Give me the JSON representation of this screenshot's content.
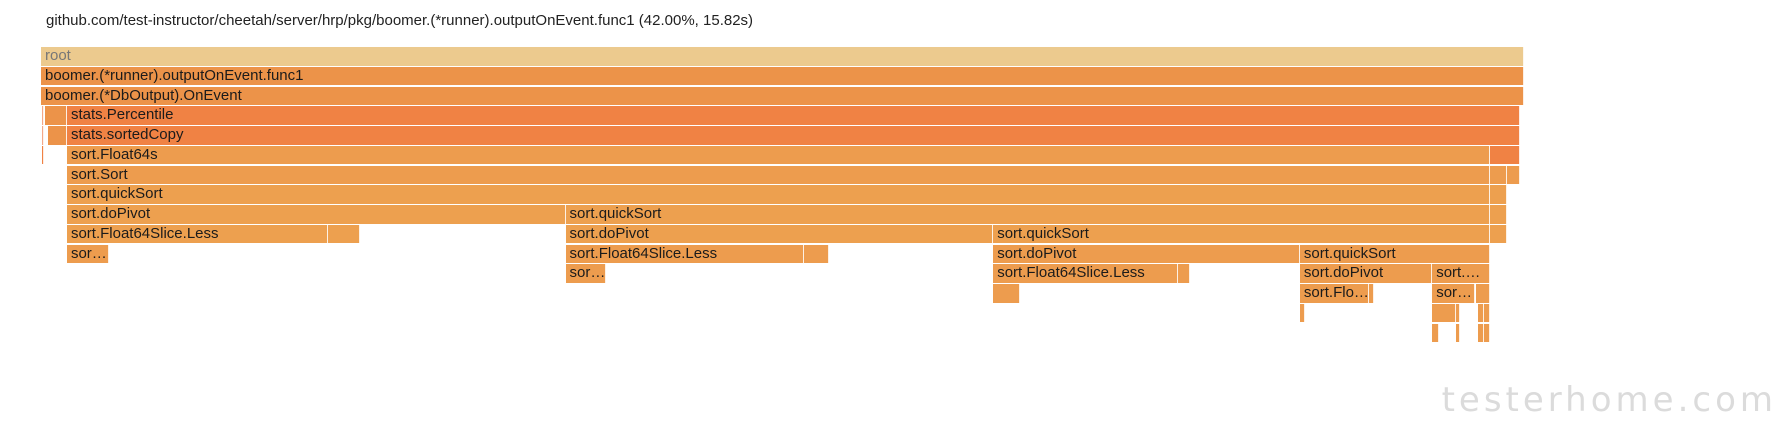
{
  "header": {
    "title": "github.com/test-instructor/cheetah/server/hrp/pkg/boomer.(*runner).outputOnEvent.func1 (42.00%, 15.82s)"
  },
  "colors": {
    "root": "#ecca8e",
    "dark": "#ec9349",
    "red": "#f08244",
    "orange": "#ed9c4e",
    "light": "#eda04f",
    "pink": "#f3a888"
  },
  "frames": [
    {
      "name": "root",
      "depth": 0,
      "start": 0.0,
      "end": 1.0,
      "color": "root"
    },
    {
      "name": "boomer.(*runner).outputOnEvent.func1",
      "depth": 1,
      "start": 0.0,
      "end": 1.0,
      "color": "dark"
    },
    {
      "name": "boomer.(*DbOutput).OnEvent",
      "depth": 2,
      "start": 0.0,
      "end": 1.0,
      "color": "dark"
    },
    {
      "name": "",
      "depth": 3,
      "start": 0.001,
      "end": 0.002,
      "color": "pink"
    },
    {
      "name": "",
      "depth": 3,
      "start": 0.003,
      "end": 0.0175,
      "color": "dark"
    },
    {
      "name": "stats.Percentile",
      "depth": 3,
      "start": 0.0175,
      "end": 0.9975,
      "color": "red"
    },
    {
      "name": "",
      "depth": 4,
      "start": 0.001,
      "end": 0.002,
      "color": "pink"
    },
    {
      "name": "",
      "depth": 4,
      "start": 0.0045,
      "end": 0.0175,
      "color": "dark"
    },
    {
      "name": "stats.sortedCopy",
      "depth": 4,
      "start": 0.0175,
      "end": 0.9975,
      "color": "red"
    },
    {
      "name": "",
      "depth": 5,
      "start": 0.001,
      "end": 0.002,
      "color": "red"
    },
    {
      "name": "sort.Float64s",
      "depth": 5,
      "start": 0.0175,
      "end": 0.9773,
      "color": "orange"
    },
    {
      "name": "",
      "depth": 5,
      "start": 0.9773,
      "end": 0.9975,
      "color": "red"
    },
    {
      "name": "sort.Sort",
      "depth": 6,
      "start": 0.0175,
      "end": 0.9773,
      "color": "orange"
    },
    {
      "name": "",
      "depth": 6,
      "start": 0.9773,
      "end": 0.9888,
      "color": "orange"
    },
    {
      "name": "",
      "depth": 6,
      "start": 0.9888,
      "end": 0.9975,
      "color": "orange"
    },
    {
      "name": "sort.quickSort",
      "depth": 7,
      "start": 0.0175,
      "end": 0.9773,
      "color": "light"
    },
    {
      "name": "",
      "depth": 7,
      "start": 0.9773,
      "end": 0.9888,
      "color": "light"
    },
    {
      "name": "sort.doPivot",
      "depth": 8,
      "start": 0.0175,
      "end": 0.3537,
      "color": "light"
    },
    {
      "name": "sort.quickSort",
      "depth": 8,
      "start": 0.3537,
      "end": 0.9773,
      "color": "light"
    },
    {
      "name": "",
      "depth": 8,
      "start": 0.9773,
      "end": 0.9888,
      "color": "light"
    },
    {
      "name": "sort.Float64Slice.Less",
      "depth": 9,
      "start": 0.0175,
      "end": 0.1933,
      "color": "light"
    },
    {
      "name": "",
      "depth": 9,
      "start": 0.1933,
      "end": 0.2148,
      "color": "light"
    },
    {
      "name": "sort.doPivot",
      "depth": 9,
      "start": 0.3537,
      "end": 0.6421,
      "color": "light"
    },
    {
      "name": "sort.quickSort",
      "depth": 9,
      "start": 0.6421,
      "end": 0.9773,
      "color": "light"
    },
    {
      "name": "",
      "depth": 9,
      "start": 0.9773,
      "end": 0.9888,
      "color": "light"
    },
    {
      "name": "sor…",
      "depth": 10,
      "start": 0.0175,
      "end": 0.0457,
      "color": "orange"
    },
    {
      "name": "sort.Float64Slice.Less",
      "depth": 10,
      "start": 0.3537,
      "end": 0.5145,
      "color": "orange"
    },
    {
      "name": "",
      "depth": 10,
      "start": 0.5145,
      "end": 0.5313,
      "color": "orange"
    },
    {
      "name": "sort.doPivot",
      "depth": 10,
      "start": 0.6421,
      "end": 0.8489,
      "color": "orange"
    },
    {
      "name": "sort.quickSort",
      "depth": 10,
      "start": 0.8489,
      "end": 0.9773,
      "color": "orange"
    },
    {
      "name": "sor…",
      "depth": 11,
      "start": 0.3537,
      "end": 0.3813,
      "color": "orange"
    },
    {
      "name": "sort.Float64Slice.Less",
      "depth": 11,
      "start": 0.6421,
      "end": 0.7668,
      "color": "orange"
    },
    {
      "name": "",
      "depth": 11,
      "start": 0.7668,
      "end": 0.7749,
      "color": "orange"
    },
    {
      "name": "sort.doPivot",
      "depth": 11,
      "start": 0.8489,
      "end": 0.9381,
      "color": "orange"
    },
    {
      "name": "sort.…",
      "depth": 11,
      "start": 0.9381,
      "end": 0.9773,
      "color": "orange"
    },
    {
      "name": "",
      "depth": 12,
      "start": 0.6421,
      "end": 0.6602,
      "color": "orange"
    },
    {
      "name": "sort.Flo…",
      "depth": 12,
      "start": 0.8489,
      "end": 0.8953,
      "color": "orange"
    },
    {
      "name": "",
      "depth": 12,
      "start": 0.8953,
      "end": 0.8987,
      "color": "orange"
    },
    {
      "name": "sor…",
      "depth": 12,
      "start": 0.9381,
      "end": 0.9673,
      "color": "orange"
    },
    {
      "name": "",
      "depth": 12,
      "start": 0.9673,
      "end": 0.9773,
      "color": "orange"
    },
    {
      "name": "",
      "depth": 13,
      "start": 0.8489,
      "end": 0.8523,
      "color": "orange"
    },
    {
      "name": "",
      "depth": 13,
      "start": 0.9381,
      "end": 0.9542,
      "color": "orange"
    },
    {
      "name": "",
      "depth": 13,
      "start": 0.9542,
      "end": 0.9566,
      "color": "orange"
    },
    {
      "name": "",
      "depth": 13,
      "start": 0.9687,
      "end": 0.9727,
      "color": "orange"
    },
    {
      "name": "",
      "depth": 13,
      "start": 0.9733,
      "end": 0.9773,
      "color": "orange"
    },
    {
      "name": "",
      "depth": 14,
      "start": 0.9381,
      "end": 0.9425,
      "color": "orange"
    },
    {
      "name": "",
      "depth": 14,
      "start": 0.9542,
      "end": 0.9566,
      "color": "orange"
    },
    {
      "name": "",
      "depth": 14,
      "start": 0.9687,
      "end": 0.9727,
      "color": "orange"
    },
    {
      "name": "",
      "depth": 14,
      "start": 0.9733,
      "end": 0.9773,
      "color": "orange"
    }
  ],
  "watermark": "testerhome.com"
}
